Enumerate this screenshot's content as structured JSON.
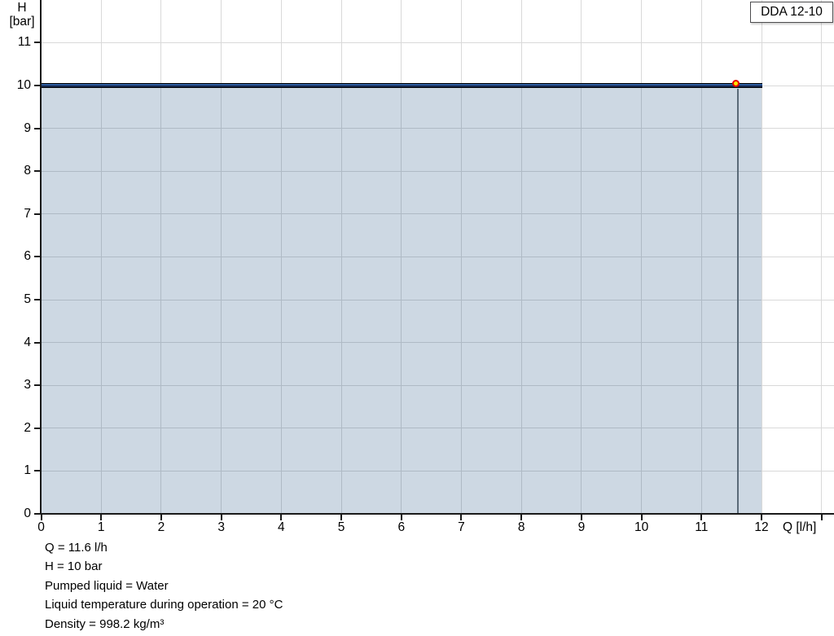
{
  "legend": {
    "label": "DDA 12-10"
  },
  "axes": {
    "y_title_line1": "H",
    "y_title_line2": "[bar]",
    "x_title": "Q [l/h]"
  },
  "info_lines": [
    "Q = 11.6 l/h",
    "H = 10 bar",
    "Pumped liquid = Water",
    "Liquid temperature during operation = 20 °C",
    "Density = 998.2 kg/m³"
  ],
  "chart_data": {
    "type": "line",
    "title": "DDA 12-10",
    "xlabel": "Q [l/h]",
    "ylabel": "H [bar]",
    "xlim": [
      0,
      13.2
    ],
    "ylim": [
      0,
      12
    ],
    "x_ticks": [
      0,
      1,
      2,
      3,
      4,
      5,
      6,
      7,
      8,
      9,
      10,
      11,
      12
    ],
    "x_ticks_unlabeled": [
      13
    ],
    "y_ticks": [
      0,
      1,
      2,
      3,
      4,
      5,
      6,
      7,
      8,
      9,
      10,
      11
    ],
    "grid": true,
    "legend_position": "top-right",
    "series": [
      {
        "name": "DDA 12-10",
        "points": [
          {
            "q": 0,
            "h": 10
          },
          {
            "q": 12,
            "h": 10
          }
        ],
        "line_color_core": "#2e5d9e",
        "line_color_dark": "#16294f",
        "line_color_edge": "#000000",
        "area_fill": "rgba(26,77,128,0.22)"
      }
    ],
    "operating_point": {
      "q": 11.6,
      "h": 10,
      "marker_fill": "#ffe400",
      "marker_stroke": "#e80000",
      "drop_line_color": "#5a6a78"
    },
    "gridline_color": "#d9d9d9",
    "axis_color": "#1a1a1a"
  }
}
